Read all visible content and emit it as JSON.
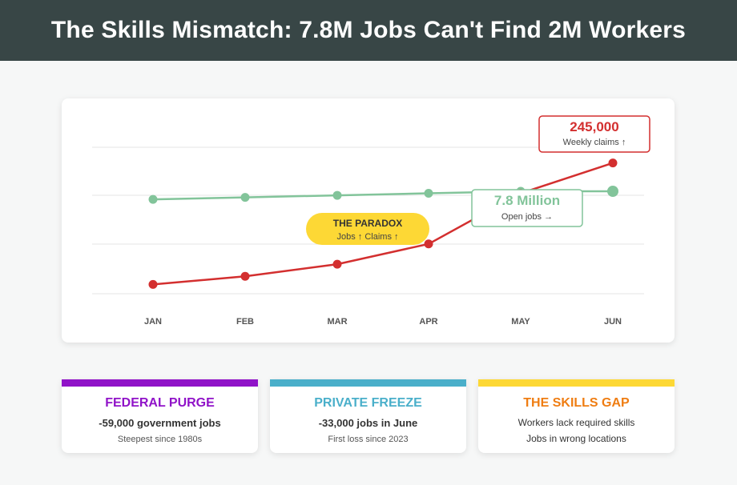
{
  "header": {
    "title": "The Skills Mismatch: 7.8M Jobs Can't Find 2M Workers"
  },
  "chart_data": {
    "type": "line",
    "categories": [
      "JAN",
      "FEB",
      "MAR",
      "APR",
      "MAY",
      "JUN"
    ],
    "series": [
      {
        "key": "jobs",
        "color": "#82c49a",
        "values": [
          0.24,
          0.26,
          0.28,
          0.3,
          0.32,
          0.32
        ]
      },
      {
        "key": "claims",
        "color": "#d32f2f",
        "values": [
          -0.6,
          -0.52,
          -0.4,
          -0.2,
          0.3,
          0.6
        ]
      }
    ],
    "ylim": [
      -0.85,
      1.0
    ],
    "grid": true,
    "annotations": {
      "claims": {
        "value": "245,000",
        "label": "Weekly claims ↑",
        "color": "#d32f2f"
      },
      "jobs": {
        "value": "7.8 Million",
        "label": "Open jobs →",
        "color": "#82c49a"
      },
      "paradox": {
        "title": "THE PARADOX",
        "label": "Jobs ↑ Claims ↑",
        "color": "#fdd835"
      }
    }
  },
  "cards": [
    {
      "title": "FEDERAL PURGE",
      "color": "#9013c8",
      "main": "-59,000 government jobs",
      "sub": "Steepest since 1980s"
    },
    {
      "title": "PRIVATE FREEZE",
      "color": "#4aafca",
      "main": "-33,000 jobs in June",
      "sub": "First loss since 2023"
    },
    {
      "title": "THE SKILLS GAP",
      "color": "#ef7d12",
      "stripe": "#fdd835",
      "line1": "Workers lack required skills",
      "line2": "Jobs in wrong locations"
    }
  ]
}
